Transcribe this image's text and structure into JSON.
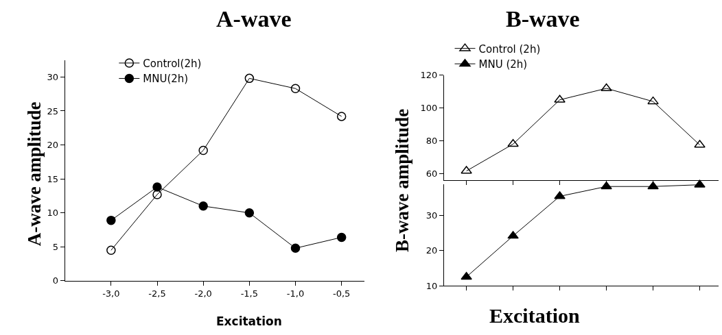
{
  "chart_data": [
    {
      "type": "line",
      "title": "A-wave",
      "xlabel": "Excitation",
      "ylabel": "A-wave amplitude",
      "x": [
        -3.0,
        -2.5,
        -2.0,
        -1.5,
        -1.0,
        -0.5
      ],
      "xlim": [
        -3.5,
        -0.25
      ],
      "xticks": [
        {
          "value": -3.0,
          "label": "-3,0"
        },
        {
          "value": -2.5,
          "label": "-2,5"
        },
        {
          "value": -2.0,
          "label": "-2,0"
        },
        {
          "value": -1.5,
          "label": "-1,5"
        },
        {
          "value": -1.0,
          "label": "-1,0"
        },
        {
          "value": -0.5,
          "label": "-0,5"
        }
      ],
      "ylim": [
        0,
        32.5
      ],
      "yticks": [
        0,
        5,
        10,
        15,
        20,
        25,
        30
      ],
      "grid": false,
      "legend": "top",
      "marker": "circle",
      "line_style": "solid",
      "series": [
        {
          "name": "Control(2h)",
          "color": "#000000",
          "values": [
            4.5,
            12.7,
            19.2,
            29.8,
            28.3,
            24.2
          ]
        },
        {
          "name": "MNU(2h)",
          "color": "#000000",
          "values": [
            8.9,
            13.8,
            11.0,
            10.0,
            4.8,
            6.4
          ]
        }
      ]
    },
    {
      "type": "line",
      "title": "B-wave",
      "ylabel": "B-wave amplitude",
      "categories": [
        null,
        null,
        null,
        null,
        null,
        null
      ],
      "ylim": [
        56,
        120
      ],
      "yticks": [
        60,
        80,
        100,
        120
      ],
      "tick_labels": "y",
      "grid": false,
      "legend": "top left",
      "marker": "triangle",
      "line_style": "solid",
      "series": [
        {
          "name": "Control (2h)",
          "color": "#000000",
          "values": [
            61.6,
            78,
            105,
            112,
            104,
            77.5
          ]
        }
      ]
    },
    {
      "type": "line",
      "xlabel": "Excitation",
      "categories": [
        null,
        null,
        null,
        null,
        null,
        null
      ],
      "ylim": [
        10,
        39
      ],
      "yticks": [
        10,
        20,
        30
      ],
      "tick_labels": "y",
      "grid": false,
      "legend": "top left",
      "marker": "triangle",
      "line_style": "solid",
      "series": [
        {
          "name": "MNU (2h)",
          "color": "#000000",
          "values": [
            12.5,
            24.2,
            35.5,
            38.3,
            38.3,
            38.8
          ]
        }
      ]
    }
  ]
}
